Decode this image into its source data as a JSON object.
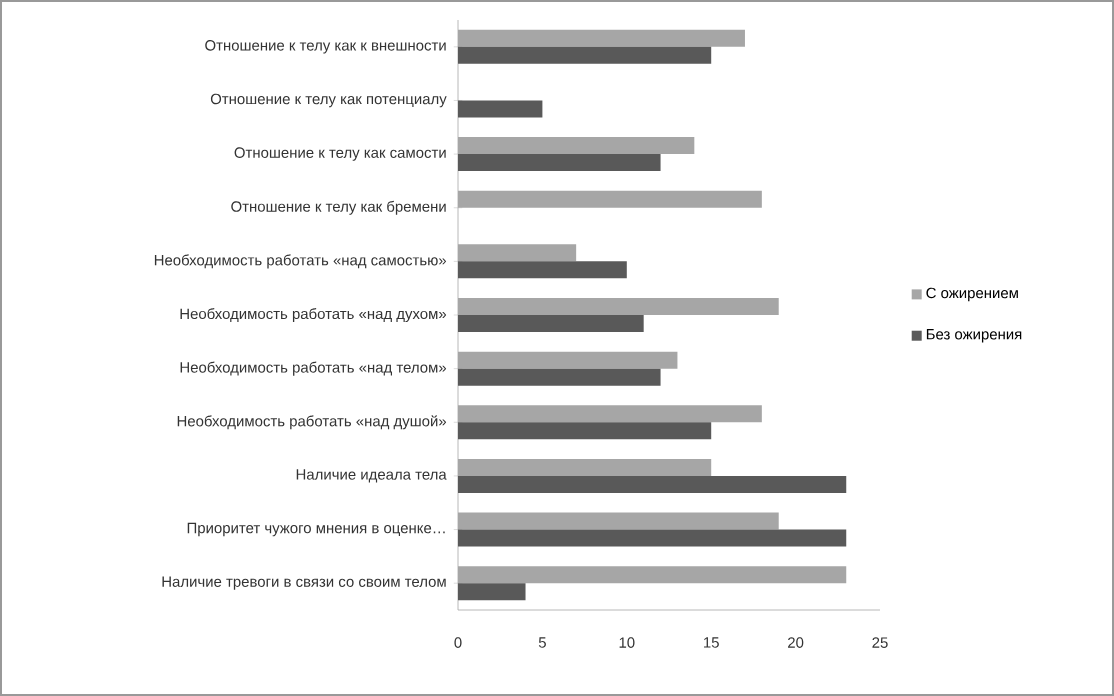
{
  "chart_data": {
    "type": "bar",
    "orientation": "horizontal",
    "categories": [
      "Отношение к телу как к внешности",
      "Отношение к телу как потенциалу",
      "Отношение к телу как самости",
      "Отношение к телу как бремени",
      "Необходимость работать «над самостью»",
      "Необходимость работать «над духом»",
      "Необходимость работать «над телом»",
      "Необходимость работать «над душой»",
      "Наличие идеала тела",
      "Приоритет чужого мнения в оценке…",
      "Наличие тревоги в связи со своим телом"
    ],
    "series": [
      {
        "name": "С ожирением",
        "color": "#a6a6a6",
        "values": [
          17,
          0,
          14,
          18,
          7,
          19,
          13,
          18,
          15,
          19,
          23
        ]
      },
      {
        "name": "Без ожирения",
        "color": "#595959",
        "values": [
          15,
          5,
          12,
          0,
          10,
          11,
          12,
          15,
          23,
          23,
          4
        ]
      }
    ],
    "xlim": [
      0,
      25
    ],
    "xticks": [
      0,
      5,
      10,
      15,
      20,
      25
    ],
    "legend": "right",
    "grid": false
  }
}
